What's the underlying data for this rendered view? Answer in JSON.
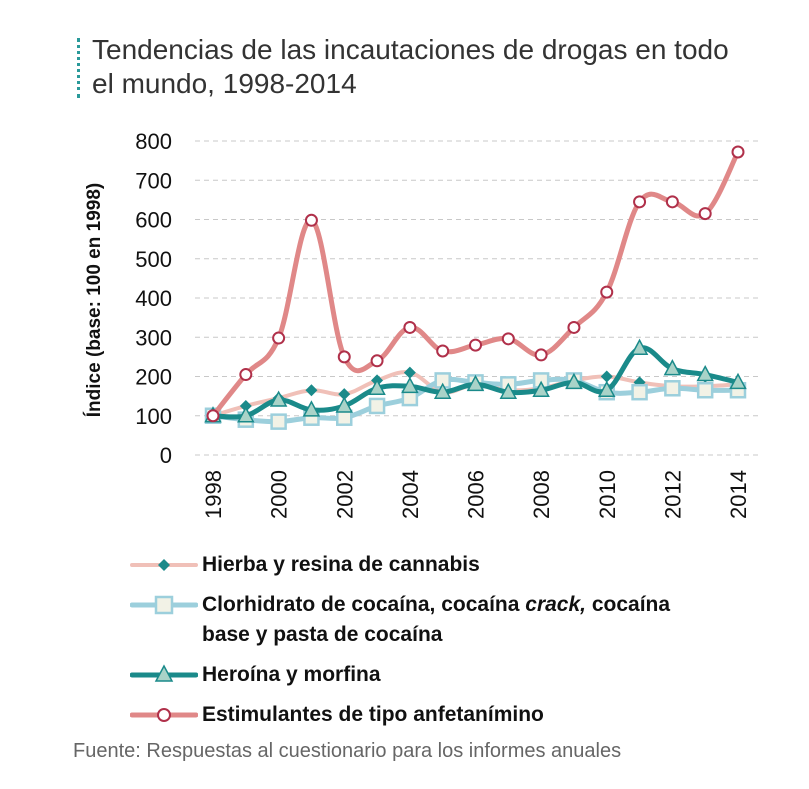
{
  "title_line1": "Tendencias de las incautaciones de drogas en todo",
  "title_line2": "el mundo, 1998-2014",
  "source": "Fuente: Respuestas al cuestionario para los informes anuales",
  "colors": {
    "cannabis": "#f0c0b8",
    "cannabis_marker": "#1a8a8a",
    "cocaine": "#9ccfdc",
    "cocaine_marker_fill": "#f2f2e6",
    "heroin": "#1a8a8a",
    "heroin_marker": "#a9d3c8",
    "ats": "#e08888",
    "ats_marker_edge": "#b0304a",
    "grid": "#c8c8c8"
  },
  "legend": {
    "cannabis": "Hierba y resina de cannabis",
    "cocaine_line1_a": "Clorhidrato de cocaína, cocaína ",
    "cocaine_line1_italic": "crack,",
    "cocaine_line1_b": " cocaína",
    "cocaine_line2": "base y pasta de cocaína",
    "heroin": "Heroína y morfina",
    "ats": "Estimulantes de tipo anfetanímino"
  },
  "chart_data": {
    "type": "line",
    "ylabel": "Índice (base: 100 en 1998)",
    "xlabel": "",
    "ylim": [
      0,
      800
    ],
    "yticks": [
      0,
      100,
      200,
      300,
      400,
      500,
      600,
      700,
      800
    ],
    "xticks": [
      "1998",
      "2000",
      "2002",
      "2004",
      "2006",
      "2008",
      "2010",
      "2012",
      "2014"
    ],
    "x": [
      1998,
      1999,
      2000,
      2001,
      2002,
      2003,
      2004,
      2005,
      2006,
      2007,
      2008,
      2009,
      2010,
      2011,
      2012,
      2013,
      2014
    ],
    "grid": "horizontal dashed",
    "legend_position": "bottom",
    "series": [
      {
        "name": "Hierba y resina de cannabis",
        "key": "cannabis",
        "values": [
          100,
          125,
          145,
          165,
          155,
          190,
          210,
          160,
          180,
          165,
          170,
          190,
          200,
          185,
          175,
          175,
          180
        ]
      },
      {
        "name": "Clorhidrato de cocaína, cocaína crack, cocaína base y pasta de cocaína",
        "key": "cocaine",
        "values": [
          100,
          90,
          85,
          95,
          95,
          125,
          145,
          190,
          185,
          180,
          190,
          190,
          160,
          160,
          170,
          165,
          165
        ]
      },
      {
        "name": "Heroína y morfina",
        "key": "heroin",
        "values": [
          100,
          100,
          140,
          115,
          125,
          170,
          175,
          160,
          180,
          160,
          165,
          185,
          165,
          272,
          220,
          205,
          185
        ]
      },
      {
        "name": "Estimulantes de tipo anfetanímino",
        "key": "ats",
        "values": [
          100,
          205,
          298,
          598,
          250,
          240,
          325,
          265,
          280,
          296,
          255,
          325,
          415,
          645,
          645,
          615,
          772
        ]
      }
    ]
  }
}
